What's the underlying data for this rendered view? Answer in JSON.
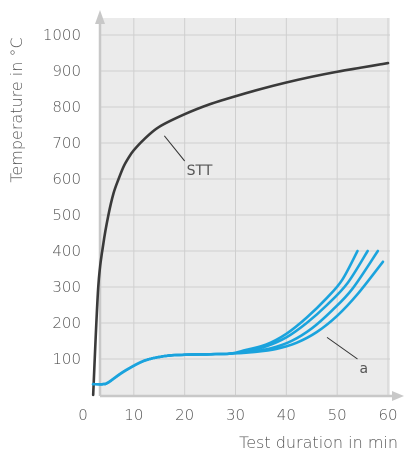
{
  "chart_data": {
    "type": "line",
    "title": "",
    "xlabel": "Test duration in min",
    "ylabel": "Temperature in °C",
    "xlim": [
      0,
      60
    ],
    "ylim": [
      0,
      1000
    ],
    "x_ticks": [
      0,
      10,
      20,
      30,
      40,
      50,
      60
    ],
    "y_ticks": [
      100,
      200,
      300,
      400,
      500,
      600,
      700,
      800,
      900,
      1000
    ],
    "grid": true,
    "colors": {
      "stt": "#3a3a3a",
      "a": "#1aa3dd",
      "grid": "#cfcfcf",
      "plot_bg": "#ebebeb",
      "axis": "#c8c8c8"
    },
    "series": [
      {
        "name": "STT",
        "points": [
          [
            2,
            0
          ],
          [
            3,
            300
          ],
          [
            4,
            420
          ],
          [
            5,
            500
          ],
          [
            6,
            560
          ],
          [
            7,
            600
          ],
          [
            8,
            635
          ],
          [
            9,
            660
          ],
          [
            10,
            680
          ],
          [
            12,
            710
          ],
          [
            15,
            745
          ],
          [
            20,
            780
          ],
          [
            25,
            808
          ],
          [
            30,
            830
          ],
          [
            35,
            850
          ],
          [
            40,
            868
          ],
          [
            45,
            884
          ],
          [
            50,
            898
          ],
          [
            55,
            910
          ],
          [
            60,
            922
          ]
        ]
      },
      {
        "name": "a",
        "points": [
          [
            2,
            30
          ],
          [
            4,
            30
          ],
          [
            5,
            35
          ],
          [
            8,
            65
          ],
          [
            12,
            95
          ],
          [
            16,
            108
          ],
          [
            20,
            112
          ],
          [
            25,
            113
          ],
          [
            29,
            115
          ],
          [
            32,
            125
          ],
          [
            36,
            140
          ],
          [
            40,
            170
          ],
          [
            44,
            215
          ],
          [
            48,
            270
          ],
          [
            51,
            320
          ],
          [
            54,
            400
          ]
        ]
      },
      {
        "name": "a",
        "points": [
          [
            2,
            30
          ],
          [
            4,
            30
          ],
          [
            5,
            35
          ],
          [
            8,
            65
          ],
          [
            12,
            95
          ],
          [
            16,
            108
          ],
          [
            20,
            112
          ],
          [
            25,
            113
          ],
          [
            29,
            115
          ],
          [
            32,
            122
          ],
          [
            36,
            135
          ],
          [
            40,
            160
          ],
          [
            44,
            200
          ],
          [
            48,
            250
          ],
          [
            52,
            310
          ],
          [
            56,
            400
          ]
        ]
      },
      {
        "name": "a",
        "points": [
          [
            2,
            30
          ],
          [
            4,
            30
          ],
          [
            5,
            35
          ],
          [
            8,
            65
          ],
          [
            12,
            95
          ],
          [
            16,
            108
          ],
          [
            20,
            112
          ],
          [
            25,
            113
          ],
          [
            29,
            115
          ],
          [
            33,
            120
          ],
          [
            37,
            130
          ],
          [
            41,
            150
          ],
          [
            45,
            185
          ],
          [
            49,
            235
          ],
          [
            53,
            295
          ],
          [
            58,
            400
          ]
        ]
      },
      {
        "name": "a",
        "points": [
          [
            2,
            30
          ],
          [
            4,
            30
          ],
          [
            5,
            35
          ],
          [
            8,
            65
          ],
          [
            12,
            95
          ],
          [
            16,
            108
          ],
          [
            20,
            112
          ],
          [
            25,
            113
          ],
          [
            29,
            115
          ],
          [
            34,
            120
          ],
          [
            38,
            128
          ],
          [
            42,
            145
          ],
          [
            46,
            175
          ],
          [
            50,
            220
          ],
          [
            54,
            280
          ],
          [
            59,
            370
          ]
        ]
      }
    ],
    "annotations": [
      {
        "text": "STT",
        "from": [
          16,
          720
        ],
        "to": [
          20,
          650
        ]
      },
      {
        "text": "a",
        "from": [
          48,
          160
        ],
        "to": [
          54,
          100
        ]
      }
    ]
  }
}
